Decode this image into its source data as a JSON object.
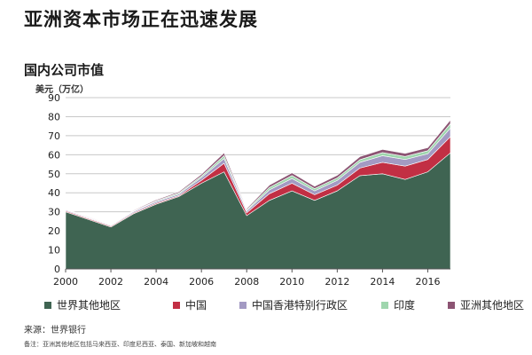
{
  "page": {
    "headline": "亚洲资本市场正在迅速发展",
    "source": "来源：世界银行",
    "note": "备注：亚洲其他地区包括马来西亚、印度尼西亚、泰国、新加坡和越南"
  },
  "chart_data": {
    "type": "area",
    "stacked": true,
    "title": "国内公司市值",
    "ylabel": "美元（万亿）",
    "xlabel": "",
    "xlim": [
      2000,
      2017
    ],
    "ylim": [
      0,
      90
    ],
    "yticks": [
      0,
      10,
      20,
      30,
      40,
      50,
      60,
      70,
      80,
      90
    ],
    "xticks": [
      2000,
      2002,
      2004,
      2006,
      2008,
      2010,
      2012,
      2014,
      2016
    ],
    "grid": true,
    "legend_position": "bottom",
    "x": [
      2000,
      2001,
      2002,
      2003,
      2004,
      2005,
      2006,
      2007,
      2008,
      2009,
      2010,
      2011,
      2012,
      2013,
      2014,
      2015,
      2016,
      2017
    ],
    "series": [
      {
        "name": "世界其他地区",
        "color": "#3f6452",
        "values": [
          30,
          26,
          22,
          29,
          34,
          38,
          45,
          51,
          28,
          36,
          41,
          36,
          41,
          49,
          50,
          47,
          51,
          61
        ]
      },
      {
        "name": "中国",
        "color": "#c22f44",
        "values": [
          0.5,
          0.5,
          0.5,
          0.5,
          0.6,
          0.5,
          1.5,
          4.5,
          1.5,
          3.5,
          4.0,
          3.0,
          3.0,
          4.0,
          6.0,
          7.0,
          6.5,
          8.5
        ]
      },
      {
        "name": "中国香港特别行政区",
        "color": "#a39ac3",
        "values": [
          0.5,
          0.4,
          0.4,
          0.6,
          0.8,
          0.8,
          1.5,
          2.5,
          1.0,
          2.0,
          2.5,
          2.0,
          2.5,
          3.0,
          3.5,
          3.5,
          3.0,
          4.5
        ]
      },
      {
        "name": "印度",
        "color": "#9fd6ae",
        "values": [
          0.2,
          0.2,
          0.2,
          0.3,
          0.4,
          0.6,
          0.8,
          1.5,
          0.6,
          1.3,
          1.6,
          1.2,
          1.3,
          1.4,
          1.6,
          1.6,
          1.6,
          2.3
        ]
      },
      {
        "name": "亚洲其他地区",
        "color": "#8c5473",
        "values": [
          0.3,
          0.3,
          0.3,
          0.4,
          0.5,
          0.6,
          0.9,
          1.5,
          0.6,
          1.2,
          1.4,
          1.2,
          1.4,
          1.6,
          1.7,
          1.6,
          1.6,
          2.0
        ]
      }
    ]
  }
}
